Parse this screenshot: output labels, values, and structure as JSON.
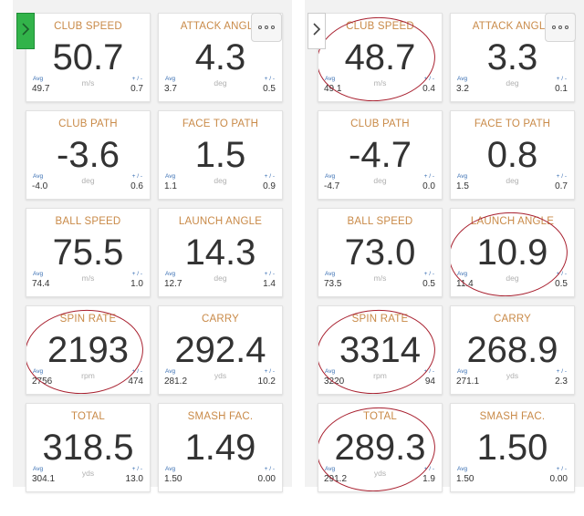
{
  "left_panel": {
    "tiles": [
      {
        "title": "CLUB SPEED",
        "value": "50.7",
        "avg_label": "Avg",
        "pm_label": "+ / -",
        "avg": "49.7",
        "unit": "m/s",
        "dev": "0.7"
      },
      {
        "title": "ATTACK ANGLE",
        "value": "4.3",
        "avg_label": "Avg",
        "pm_label": "+ / -",
        "avg": "3.7",
        "unit": "deg",
        "dev": "0.5"
      },
      {
        "title": "CLUB PATH",
        "value": "-3.6",
        "avg_label": "Avg",
        "pm_label": "+ / -",
        "avg": "-4.0",
        "unit": "deg",
        "dev": "0.6"
      },
      {
        "title": "FACE TO PATH",
        "value": "1.5",
        "avg_label": "Avg",
        "pm_label": "+ / -",
        "avg": "1.1",
        "unit": "deg",
        "dev": "0.9"
      },
      {
        "title": "BALL SPEED",
        "value": "75.5",
        "avg_label": "Avg",
        "pm_label": "+ / -",
        "avg": "74.4",
        "unit": "m/s",
        "dev": "1.0"
      },
      {
        "title": "LAUNCH ANGLE",
        "value": "14.3",
        "avg_label": "Avg",
        "pm_label": "+ / -",
        "avg": "12.7",
        "unit": "deg",
        "dev": "1.4"
      },
      {
        "title": "SPIN RATE",
        "value": "2193",
        "avg_label": "Avg",
        "pm_label": "+ / -",
        "avg": "2756",
        "unit": "rpm",
        "dev": "474"
      },
      {
        "title": "CARRY",
        "value": "292.4",
        "avg_label": "Avg",
        "pm_label": "+ / -",
        "avg": "281.2",
        "unit": "yds",
        "dev": "10.2"
      },
      {
        "title": "TOTAL",
        "value": "318.5",
        "avg_label": "Avg",
        "pm_label": "+ / -",
        "avg": "304.1",
        "unit": "yds",
        "dev": "13.0"
      },
      {
        "title": "SMASH FAC.",
        "value": "1.49",
        "avg_label": "Avg",
        "pm_label": "+ / -",
        "avg": "1.50",
        "unit": "",
        "dev": "0.00"
      }
    ]
  },
  "right_panel": {
    "tiles": [
      {
        "title": "CLUB SPEED",
        "value": "48.7",
        "avg_label": "Avg",
        "pm_label": "+ / -",
        "avg": "49.1",
        "unit": "m/s",
        "dev": "0.4"
      },
      {
        "title": "ATTACK ANGLE",
        "value": "3.3",
        "avg_label": "Avg",
        "pm_label": "+ / -",
        "avg": "3.2",
        "unit": "deg",
        "dev": "0.1"
      },
      {
        "title": "CLUB PATH",
        "value": "-4.7",
        "avg_label": "Avg",
        "pm_label": "+ / -",
        "avg": "-4.7",
        "unit": "deg",
        "dev": "0.0"
      },
      {
        "title": "FACE TO PATH",
        "value": "0.8",
        "avg_label": "Avg",
        "pm_label": "+ / -",
        "avg": "1.5",
        "unit": "deg",
        "dev": "0.7"
      },
      {
        "title": "BALL SPEED",
        "value": "73.0",
        "avg_label": "Avg",
        "pm_label": "+ / -",
        "avg": "73.5",
        "unit": "m/s",
        "dev": "0.5"
      },
      {
        "title": "LAUNCH ANGLE",
        "value": "10.9",
        "avg_label": "Avg",
        "pm_label": "+ / -",
        "avg": "11.4",
        "unit": "deg",
        "dev": "0.5"
      },
      {
        "title": "SPIN RATE",
        "value": "3314",
        "avg_label": "Avg",
        "pm_label": "+ / -",
        "avg": "3220",
        "unit": "rpm",
        "dev": "94"
      },
      {
        "title": "CARRY",
        "value": "268.9",
        "avg_label": "Avg",
        "pm_label": "+ / -",
        "avg": "271.1",
        "unit": "yds",
        "dev": "2.3"
      },
      {
        "title": "TOTAL",
        "value": "289.3",
        "avg_label": "Avg",
        "pm_label": "+ / -",
        "avg": "291.2",
        "unit": "yds",
        "dev": "1.9"
      },
      {
        "title": "SMASH FAC.",
        "value": "1.50",
        "avg_label": "Avg",
        "pm_label": "+ / -",
        "avg": "1.50",
        "unit": "",
        "dev": "0.00"
      }
    ]
  },
  "controls": {
    "left_toggle_icon": "chevron-right-icon",
    "right_toggle_icon": "chevron-right-icon",
    "more_icon": "more-horizontal-icon"
  },
  "colors": {
    "title": "#c98a48",
    "value": "#333333",
    "label": "#3a6fb3",
    "annotation": "#a8202f",
    "toggle_active": "#32b34a"
  }
}
